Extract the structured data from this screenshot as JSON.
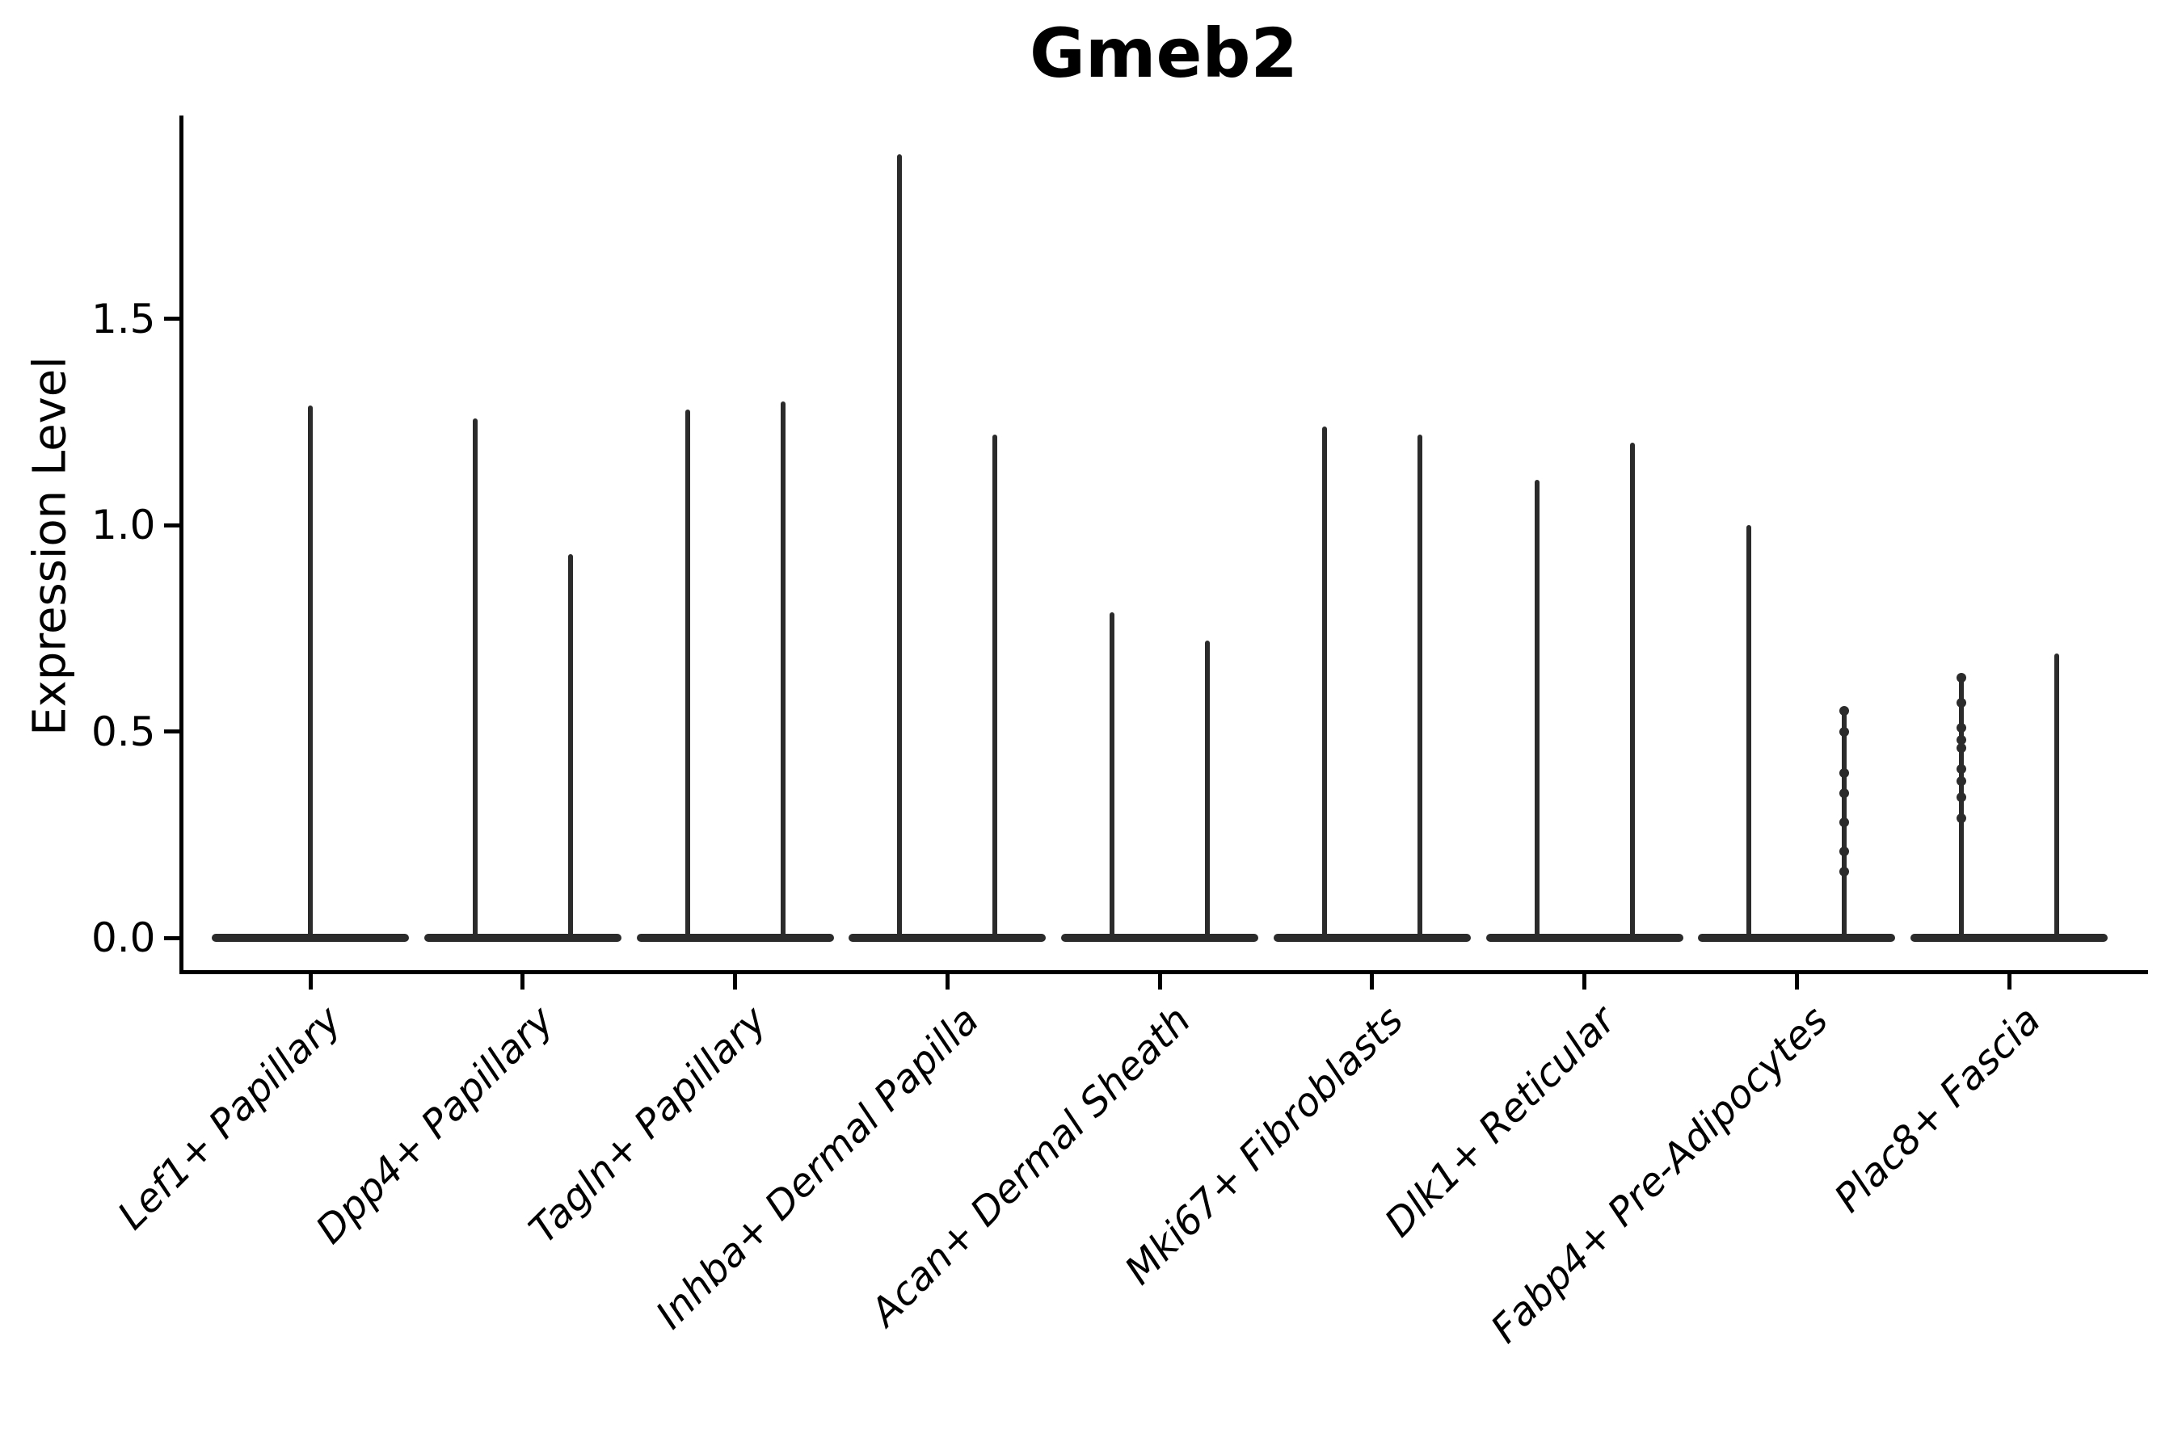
{
  "figure": {
    "title": "Gmeb2"
  },
  "chart_data": {
    "type": "violin",
    "title": "Gmeb2",
    "xlabel": "",
    "ylabel": "Expression Level",
    "ylim": [
      0,
      1.95
    ],
    "yticks": [
      0.0,
      0.5,
      1.0,
      1.5
    ],
    "ytick_labels": [
      "0.0",
      "0.5",
      "1.0",
      "1.5"
    ],
    "grid": "off",
    "legend": "none",
    "description": "Violin plot of Gmeb2 expression; each cluster shows a wide density base at 0 with thin spikes up to the maximum expression value. Most clusters contain two side-by-side violins; Lef1+ Papillary has a single full-width violin.",
    "style": {
      "line_color": "#2b2b2b",
      "axis_color": "#000000",
      "background": "#ffffff"
    },
    "violins": [
      {
        "category": "Lef1+ Papillary",
        "layout": "single",
        "groups": [
          {
            "max": 1.29
          }
        ]
      },
      {
        "category": "Dpp4+ Papillary",
        "layout": "split",
        "groups": [
          {
            "max": 1.26
          },
          {
            "max": 0.93
          }
        ]
      },
      {
        "category": "Tagln+ Papillary",
        "layout": "split",
        "groups": [
          {
            "max": 1.28
          },
          {
            "max": 1.3
          }
        ]
      },
      {
        "category": "Inhba+ Dermal Papilla",
        "layout": "split",
        "groups": [
          {
            "max": 1.9
          },
          {
            "max": 1.22
          }
        ]
      },
      {
        "category": "Acan+ Dermal Sheath",
        "layout": "split",
        "groups": [
          {
            "max": 0.79
          },
          {
            "max": 0.72
          }
        ]
      },
      {
        "category": "Mki67+ Fibroblasts",
        "layout": "split",
        "groups": [
          {
            "max": 1.24
          },
          {
            "max": 1.22
          }
        ]
      },
      {
        "category": "Dlk1+ Reticular",
        "layout": "split",
        "groups": [
          {
            "max": 1.11
          },
          {
            "max": 1.2
          }
        ]
      },
      {
        "category": "Fabp4+ Pre-Adipocytes",
        "layout": "split",
        "groups": [
          {
            "max": 1.0
          },
          {
            "max": 0.55,
            "dots": [
              0.55,
              0.5,
              0.4,
              0.35,
              0.28,
              0.21,
              0.16
            ]
          }
        ]
      },
      {
        "category": "Plac8+ Fascia",
        "layout": "split",
        "groups": [
          {
            "max": 0.63,
            "dots": [
              0.63,
              0.57,
              0.51,
              0.48,
              0.46,
              0.41,
              0.38,
              0.34,
              0.29
            ]
          },
          {
            "max": 0.69
          }
        ]
      }
    ]
  }
}
